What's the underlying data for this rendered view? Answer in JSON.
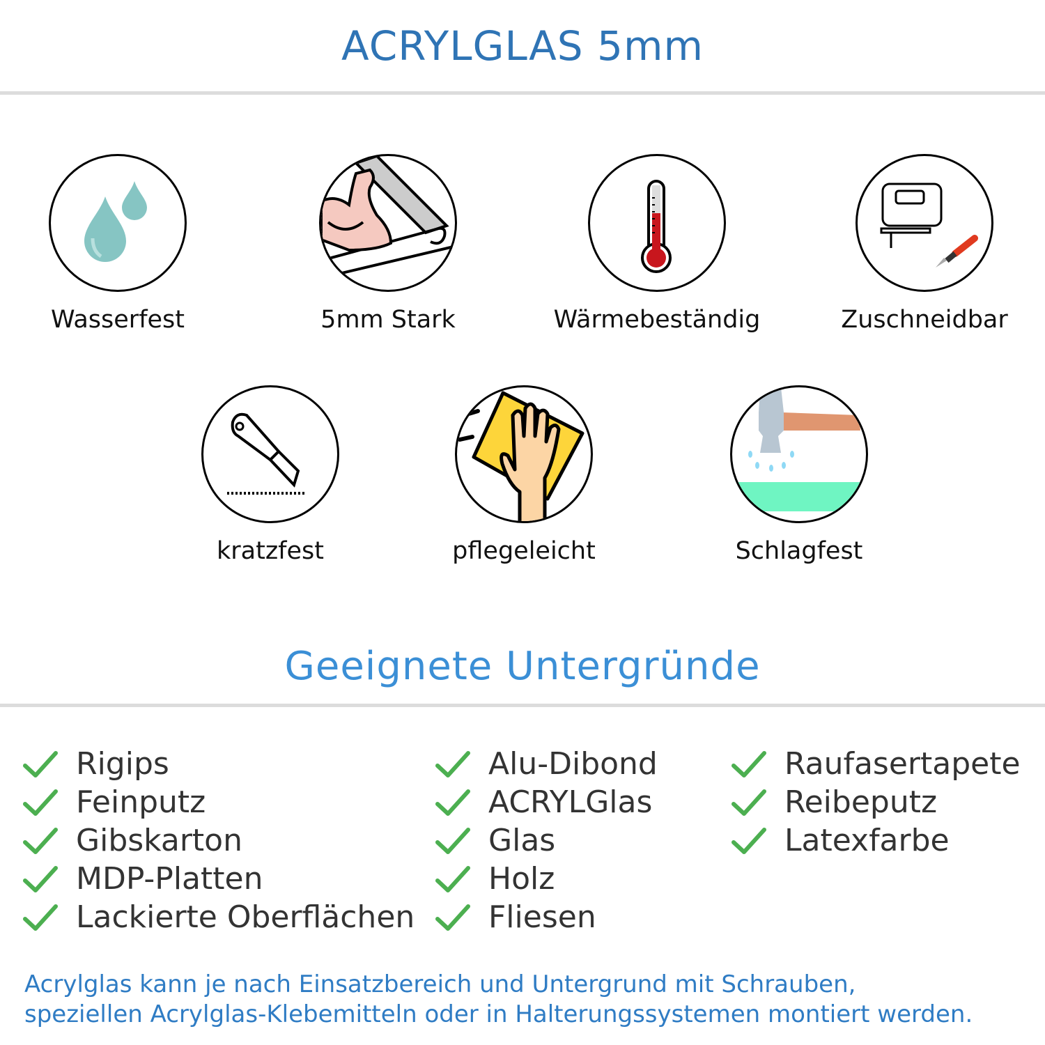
{
  "header": {
    "title": "ACRYLGLAS 5mm"
  },
  "features": [
    {
      "label": "Wasserfest",
      "icon": "water-drops-icon"
    },
    {
      "label": "5mm Stark",
      "icon": "strong-arm-icon"
    },
    {
      "label": "Wärmebeständig",
      "icon": "thermometer-icon"
    },
    {
      "label": "Zuschneidbar",
      "icon": "jigsaw-cutter-icon"
    },
    {
      "label": "kratzfest",
      "icon": "utility-knife-icon"
    },
    {
      "label": "pflegeleicht",
      "icon": "cleaning-hand-icon"
    },
    {
      "label": "Schlagfest",
      "icon": "hammer-icon"
    }
  ],
  "surfaces": {
    "title": "Geeignete Untergründe",
    "columns": [
      [
        "Rigips",
        "Feinputz",
        "Gibskarton",
        "MDP-Platten",
        "Lackierte Oberflächen"
      ],
      [
        "Alu-Dibond",
        "ACRYLGlas",
        "Glas",
        "Holz",
        "Fliesen"
      ],
      [
        "Raufasertapete",
        "Reibeputz",
        "Latexfarbe"
      ]
    ],
    "check_color": "#4caf50"
  },
  "footer": {
    "lines": [
      "Acrylglas kann je nach Einsatzbereich und Untergrund mit Schrauben,",
      "speziellen Acrylglas-Klebemitteln oder in Halterungssystemen montiert werden."
    ]
  },
  "colors": {
    "title": "#2f74b5",
    "subtitle": "#3b8fd6",
    "footer": "#2f7cc4"
  }
}
